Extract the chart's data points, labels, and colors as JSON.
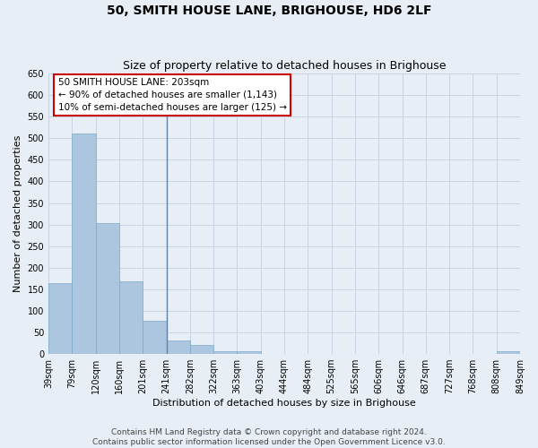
{
  "title": "50, SMITH HOUSE LANE, BRIGHOUSE, HD6 2LF",
  "subtitle": "Size of property relative to detached houses in Brighouse",
  "xlabel": "Distribution of detached houses by size in Brighouse",
  "ylabel": "Number of detached properties",
  "bar_values": [
    165,
    510,
    303,
    168,
    78,
    32,
    20,
    7,
    7,
    0,
    0,
    0,
    0,
    0,
    0,
    0,
    0,
    0,
    0,
    7
  ],
  "x_labels": [
    "39sqm",
    "79sqm",
    "120sqm",
    "160sqm",
    "201sqm",
    "241sqm",
    "282sqm",
    "322sqm",
    "363sqm",
    "403sqm",
    "444sqm",
    "484sqm",
    "525sqm",
    "565sqm",
    "606sqm",
    "646sqm",
    "687sqm",
    "727sqm",
    "768sqm",
    "808sqm",
    "849sqm"
  ],
  "bar_color": "#adc6e0",
  "bar_edge_color": "#7aaac8",
  "vline_color": "#6080a0",
  "ylim": [
    0,
    650
  ],
  "yticks": [
    0,
    50,
    100,
    150,
    200,
    250,
    300,
    350,
    400,
    450,
    500,
    550,
    600,
    650
  ],
  "grid_color": "#c8d4e4",
  "bg_color": "#e8eef6",
  "annotation_title": "50 SMITH HOUSE LANE: 203sqm",
  "annotation_line1": "← 90% of detached houses are smaller (1,143)",
  "annotation_line2": "10% of semi-detached houses are larger (125) →",
  "annotation_box_color": "#ffffff",
  "annotation_border_color": "#cc0000",
  "footer_line1": "Contains HM Land Registry data © Crown copyright and database right 2024.",
  "footer_line2": "Contains public sector information licensed under the Open Government Licence v3.0.",
  "title_fontsize": 10,
  "subtitle_fontsize": 9,
  "axis_label_fontsize": 8,
  "tick_fontsize": 7,
  "annotation_fontsize": 7.5,
  "footer_fontsize": 6.5
}
